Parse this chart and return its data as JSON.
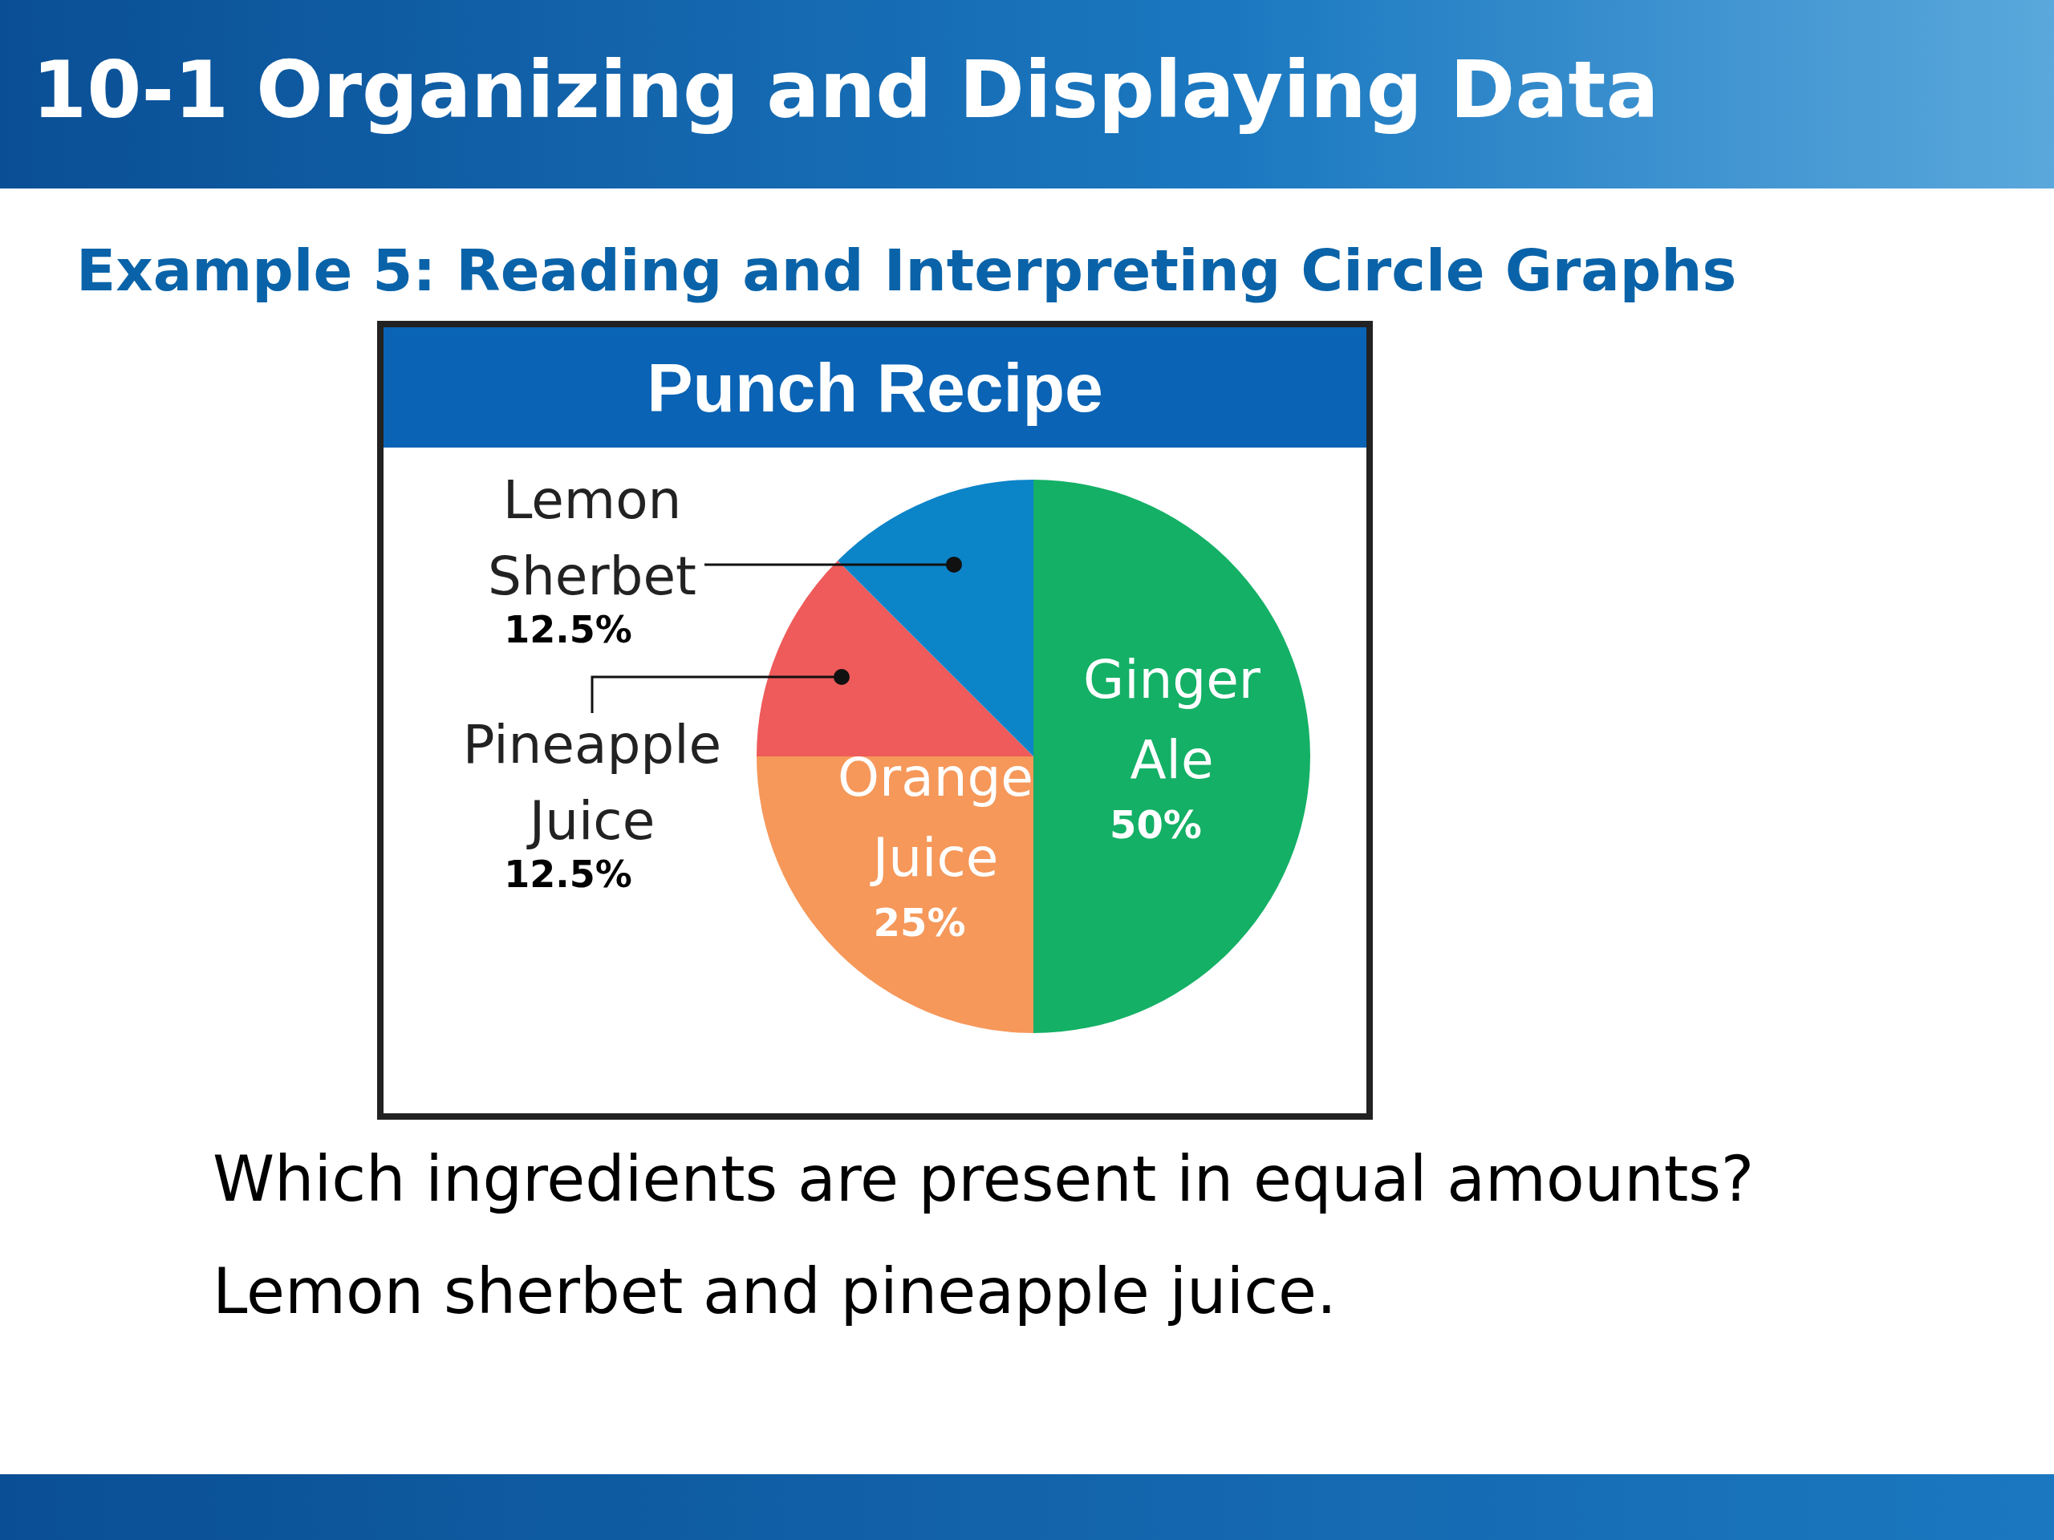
{
  "chart_data": {
    "type": "pie",
    "title": "Punch Recipe",
    "categories": [
      "Ginger Ale",
      "Orange Juice",
      "Pineapple Juice",
      "Lemon Sherbet"
    ],
    "values": [
      50,
      25,
      12.5,
      12.5
    ],
    "colors": [
      "#14b066",
      "#f5985a",
      "#ef5a5a",
      "#0c84c8"
    ],
    "value_labels": [
      "50%",
      "25%",
      "12.5%",
      "12.5%"
    ],
    "legend": false,
    "annotations": [
      "10-1 Organizing and Displaying Data",
      "Example 5: Reading and Interpreting Circle Graphs",
      "Which ingredients are present in equal amounts?",
      "Lemon sherbet and pineapple juice."
    ]
  }
}
